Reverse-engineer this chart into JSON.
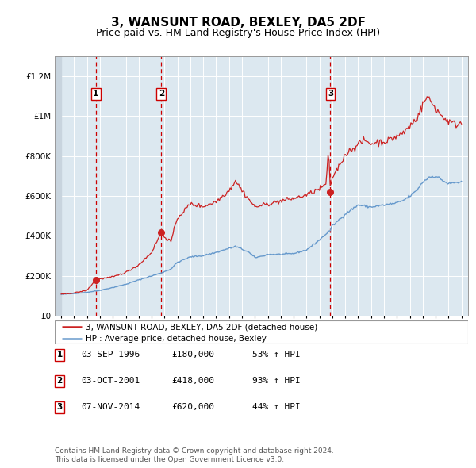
{
  "title": "3, WANSUNT ROAD, BEXLEY, DA5 2DF",
  "subtitle": "Price paid vs. HM Land Registry's House Price Index (HPI)",
  "title_fontsize": 11,
  "subtitle_fontsize": 9,
  "legend_line1": "3, WANSUNT ROAD, BEXLEY, DA5 2DF (detached house)",
  "legend_line2": "HPI: Average price, detached house, Bexley",
  "footer_line1": "Contains HM Land Registry data © Crown copyright and database right 2024.",
  "footer_line2": "This data is licensed under the Open Government Licence v3.0.",
  "transactions": [
    {
      "num": 1,
      "date": "03-SEP-1996",
      "price": 180000,
      "hpi_pct": "53% ↑ HPI",
      "year_x": 1996.67
    },
    {
      "num": 2,
      "date": "03-OCT-2001",
      "price": 418000,
      "hpi_pct": "93% ↑ HPI",
      "year_x": 2001.75
    },
    {
      "num": 3,
      "date": "07-NOV-2014",
      "price": 620000,
      "hpi_pct": "44% ↑ HPI",
      "year_x": 2014.85
    }
  ],
  "hpi_color": "#6699cc",
  "price_color": "#cc2222",
  "dot_color": "#cc2222",
  "vline_color": "#cc0000",
  "plot_bg": "#dce8f0",
  "grid_color": "#ffffff",
  "hatch_bg": "#c8d4de",
  "ylim": [
    0,
    1300000
  ],
  "xlim_start": 1993.5,
  "xlim_end": 2025.5,
  "yticks": [
    0,
    200000,
    400000,
    600000,
    800000,
    1000000,
    1200000
  ],
  "ytick_labels": [
    "£0",
    "£200K",
    "£400K",
    "£600K",
    "£800K",
    "£1M",
    "£1.2M"
  ]
}
